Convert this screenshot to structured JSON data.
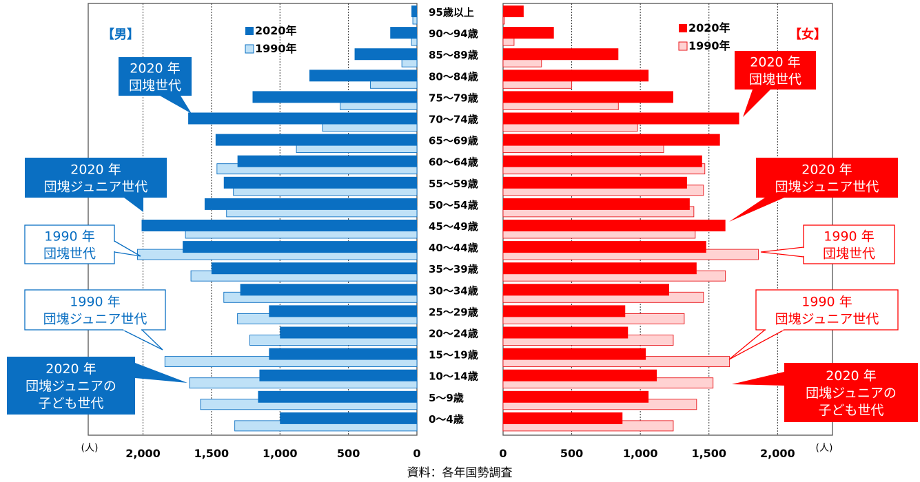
{
  "chart_data": {
    "type": "bar",
    "orientation": "horizontal-population-pyramid",
    "categories": [
      "95歳以上",
      "90～94歳",
      "85～89歳",
      "80～84歳",
      "75～79歳",
      "70～74歳",
      "65～69歳",
      "60～64歳",
      "55～59歳",
      "50～54歳",
      "45～49歳",
      "40～44歳",
      "35～39歳",
      "30～34歳",
      "25～29歳",
      "20～24歳",
      "15～19歳",
      "10～14歳",
      "5～9歳",
      "0～4歳"
    ],
    "male": {
      "label": "【男】",
      "series": [
        {
          "name": "2020年",
          "color": "#0a6fc2",
          "values": [
            40,
            195,
            455,
            785,
            1200,
            1670,
            1470,
            1310,
            1410,
            1550,
            2010,
            1710,
            1500,
            1290,
            1080,
            1000,
            1080,
            1150,
            1160,
            1000
          ]
        },
        {
          "name": "1990年",
          "color": "#bfe1f7",
          "values": [
            30,
            40,
            110,
            340,
            560,
            690,
            880,
            1460,
            1340,
            1390,
            1690,
            2040,
            1650,
            1410,
            1310,
            1220,
            1840,
            1660,
            1580,
            1330
          ]
        }
      ]
    },
    "female": {
      "label": "【女】",
      "series": [
        {
          "name": "2020年",
          "color": "#ff0000",
          "values": [
            150,
            370,
            840,
            1060,
            1240,
            1720,
            1580,
            1450,
            1340,
            1360,
            1620,
            1480,
            1410,
            1210,
            890,
            910,
            1040,
            1120,
            1060,
            870
          ]
        },
        {
          "name": "1990年",
          "color": "#ffd2d2",
          "values": [
            10,
            80,
            280,
            500,
            840,
            980,
            1170,
            1470,
            1460,
            1390,
            1400,
            1860,
            1620,
            1460,
            1320,
            1240,
            1650,
            1530,
            1410,
            1240
          ]
        }
      ]
    },
    "xlim": [
      0,
      2400
    ],
    "x_ticks_male": [
      "2,000",
      "1,500",
      "1,000",
      "500",
      "0"
    ],
    "x_ticks_female": [
      "0",
      "500",
      "1,000",
      "1,500",
      "2,000"
    ],
    "x_tick_values": [
      2000,
      1500,
      1000,
      500,
      0
    ],
    "unit": "(人)",
    "source": "資料：各年国勢調査",
    "grid": "vertical dashed",
    "legend_male_position": "top-center",
    "legend_female_position": "top-right",
    "annotations": [
      {
        "side": "male",
        "text": [
          "2020 年",
          "団塊世代"
        ],
        "style": "filled",
        "age": "70～74歳",
        "series": "2020年"
      },
      {
        "side": "male",
        "text": [
          "2020 年",
          "団塊ジュニア世代"
        ],
        "style": "filled",
        "age": "45～49歳",
        "series": "2020年"
      },
      {
        "side": "male",
        "text": [
          "1990 年",
          "団塊世代"
        ],
        "style": "outline",
        "age": "40～44歳",
        "series": "1990年"
      },
      {
        "side": "male",
        "text": [
          "1990 年",
          "団塊ジュニア世代"
        ],
        "style": "outline",
        "age": "15～19歳",
        "series": "1990年"
      },
      {
        "side": "male",
        "text": [
          "2020 年",
          "団塊ジュニアの",
          "子ども世代"
        ],
        "style": "filled",
        "age": "10～14歳",
        "series": "2020年"
      },
      {
        "side": "female",
        "text": [
          "2020 年",
          "団塊世代"
        ],
        "style": "filled",
        "age": "70～74歳",
        "series": "2020年"
      },
      {
        "side": "female",
        "text": [
          "2020 年",
          "団塊ジュニア世代"
        ],
        "style": "filled",
        "age": "45～49歳",
        "series": "2020年"
      },
      {
        "side": "female",
        "text": [
          "1990 年",
          "団塊世代"
        ],
        "style": "outline",
        "age": "40～44歳",
        "series": "1990年"
      },
      {
        "side": "female",
        "text": [
          "1990 年",
          "団塊ジュニア世代"
        ],
        "style": "outline",
        "age": "15～19歳",
        "series": "1990年"
      },
      {
        "side": "female",
        "text": [
          "2020 年",
          "団塊ジュニアの",
          "子ども世代"
        ],
        "style": "filled",
        "age": "10～14歳",
        "series": "2020年"
      }
    ]
  }
}
